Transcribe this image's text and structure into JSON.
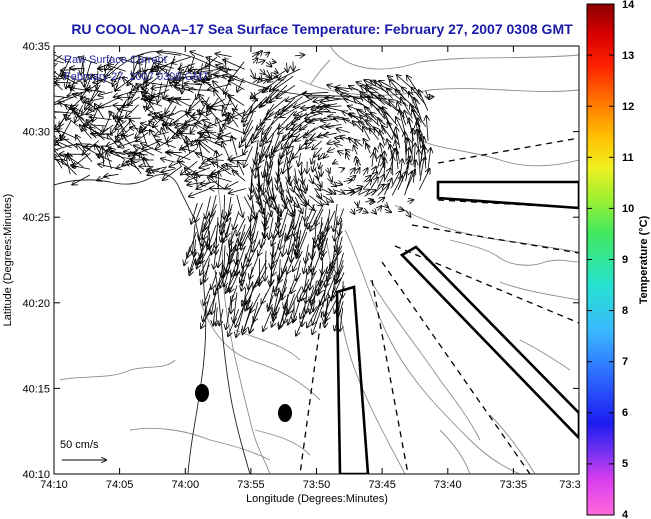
{
  "title": "RU COOL  NOAA–17  Sea Surface Temperature:  February 27, 2007 0308 GMT",
  "legend": {
    "line1": "Raw Surface Current",
    "line2": "February 27, 2007 0300 GMT",
    "scale_label": "50 cm/s"
  },
  "axes": {
    "xlabel": "Longitude (Degrees:Minutes)",
    "ylabel": "Latitude (Degrees:Minutes)",
    "x_ticks": [
      "74:10",
      "74:05",
      "74:00",
      "73:55",
      "73:50",
      "73:45",
      "73:40",
      "73:35",
      "73:3"
    ],
    "y_ticks": [
      "40:35",
      "40:30",
      "40:25",
      "40:20",
      "40:15",
      "40:10"
    ]
  },
  "colorbar": {
    "label": "Temperature (°C)",
    "ticks": [
      "14",
      "13",
      "12",
      "11",
      "10",
      "9",
      "8",
      "7",
      "6",
      "5",
      "4"
    ],
    "range": [
      4,
      14
    ]
  }
}
